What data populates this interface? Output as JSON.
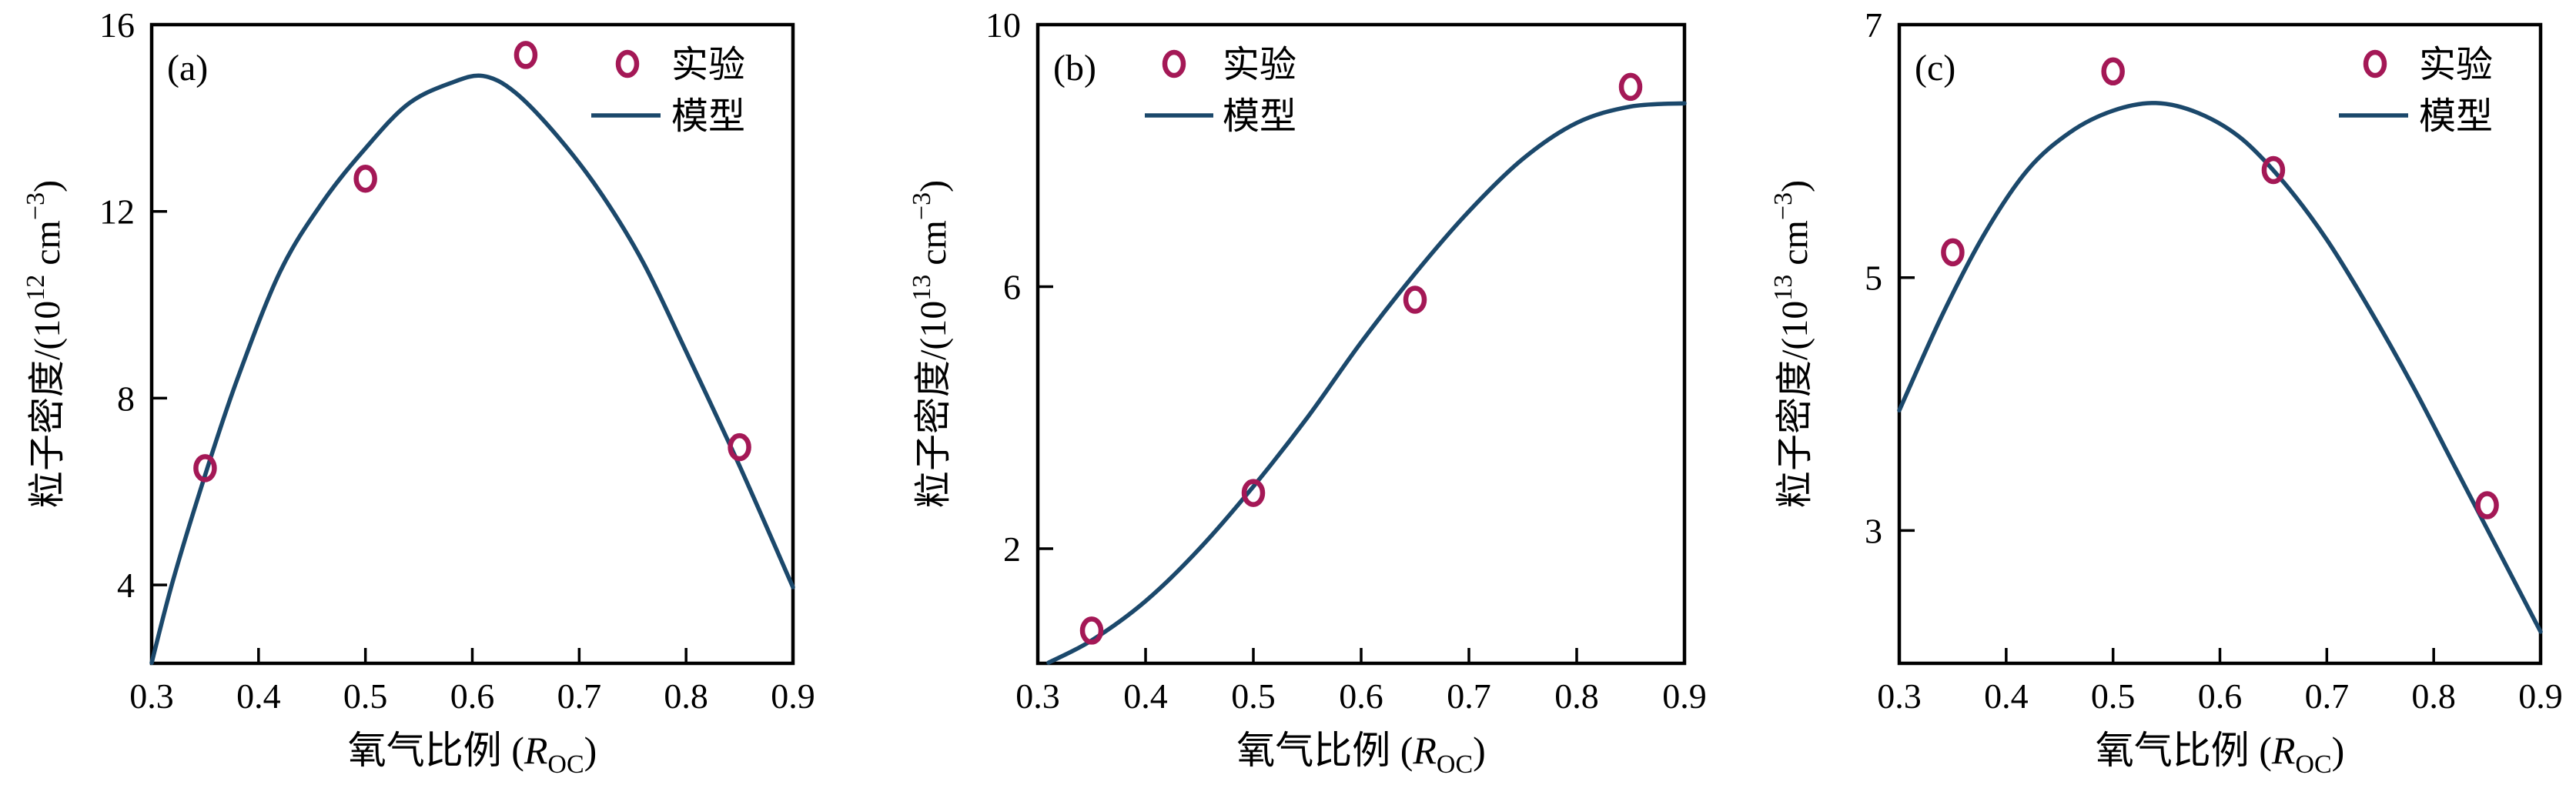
{
  "colors": {
    "background": "#ffffff",
    "axis": "#000000",
    "model_line": "#1b486b",
    "experiment_marker": "#a41856"
  },
  "legend": {
    "experiment_label": "实验",
    "model_label": "模型"
  },
  "xaxis": {
    "title_prefix": "氧气比例 (",
    "title_symbol": "R",
    "title_subscript": "OC",
    "title_suffix": ")",
    "tick_labels": [
      "0.3",
      "0.4",
      "0.5",
      "0.6",
      "0.7",
      "0.8",
      "0.9"
    ],
    "min": 0.3,
    "max": 0.9
  },
  "chart_data": [
    {
      "type": "scatter",
      "panel_label": "(a)",
      "xlabel": "氧气比例 (R_OC)",
      "ylabel_text": "粒子密度/(10^12 cm^-3)",
      "ylabel": {
        "prefix": "粒子密度/(10",
        "exponent": "12",
        "unit": " cm",
        "unit_exponent": "−3",
        "suffix": ")"
      },
      "xlim": [
        0.3,
        0.9
      ],
      "ylim": [
        2.32,
        16
      ],
      "yticks": [
        4,
        8,
        12,
        16
      ],
      "xticks": [
        0.3,
        0.4,
        0.5,
        0.6,
        0.7,
        0.8,
        0.9
      ],
      "legend_position": "top-right",
      "legend_entries": [
        "实验",
        "模型"
      ],
      "series": [
        {
          "name": "实验",
          "kind": "points",
          "x": [
            0.35,
            0.5,
            0.65,
            0.85
          ],
          "y": [
            6.5,
            12.7,
            15.35,
            6.95
          ]
        },
        {
          "name": "模型",
          "kind": "curve",
          "x": [
            0.3,
            0.32,
            0.35,
            0.38,
            0.42,
            0.46,
            0.5,
            0.54,
            0.58,
            0.61,
            0.64,
            0.68,
            0.72,
            0.76,
            0.8,
            0.85,
            0.9
          ],
          "y": [
            2.33,
            4.1,
            6.35,
            8.4,
            10.7,
            12.2,
            13.35,
            14.3,
            14.75,
            14.9,
            14.55,
            13.6,
            12.4,
            10.9,
            9.0,
            6.55,
            3.95
          ]
        }
      ]
    },
    {
      "type": "scatter",
      "panel_label": "(b)",
      "xlabel": "氧气比例 (R_OC)",
      "ylabel_text": "粒子密度/(10^13 cm^-3)",
      "ylabel": {
        "prefix": "粒子密度/(10",
        "exponent": "13",
        "unit": " cm",
        "unit_exponent": "−3",
        "suffix": ")"
      },
      "xlim": [
        0.3,
        0.9
      ],
      "ylim": [
        0.25,
        10
      ],
      "yticks": [
        2,
        6,
        10
      ],
      "xticks": [
        0.3,
        0.4,
        0.5,
        0.6,
        0.7,
        0.8,
        0.9
      ],
      "legend_position": "top-left",
      "legend_entries": [
        "实验",
        "模型"
      ],
      "series": [
        {
          "name": "实验",
          "kind": "points",
          "x": [
            0.35,
            0.5,
            0.65,
            0.85
          ],
          "y": [
            0.75,
            2.85,
            5.8,
            9.05
          ]
        },
        {
          "name": "模型",
          "kind": "curve",
          "x": [
            0.31,
            0.35,
            0.4,
            0.45,
            0.5,
            0.55,
            0.6,
            0.65,
            0.7,
            0.75,
            0.8,
            0.85,
            0.9
          ],
          "y": [
            0.26,
            0.6,
            1.2,
            2.0,
            2.95,
            4.0,
            5.15,
            6.2,
            7.15,
            7.95,
            8.5,
            8.75,
            8.8
          ]
        }
      ]
    },
    {
      "type": "scatter",
      "panel_label": "(c)",
      "xlabel": "氧气比例 (R_OC)",
      "ylabel_text": "粒子密度/(10^13 cm^-3)",
      "ylabel": {
        "prefix": "粒子密度/(10",
        "exponent": "13",
        "unit": " cm",
        "unit_exponent": "−3",
        "suffix": ")"
      },
      "xlim": [
        0.3,
        0.9
      ],
      "ylim": [
        1.95,
        7
      ],
      "yticks": [
        3,
        5,
        7
      ],
      "xticks": [
        0.3,
        0.4,
        0.5,
        0.6,
        0.7,
        0.8,
        0.9
      ],
      "legend_position": "top-right",
      "legend_entries": [
        "实验",
        "模型"
      ],
      "series": [
        {
          "name": "实验",
          "kind": "points",
          "x": [
            0.35,
            0.5,
            0.65,
            0.85
          ],
          "y": [
            5.2,
            6.63,
            5.85,
            3.2
          ]
        },
        {
          "name": "模型",
          "kind": "curve",
          "x": [
            0.3,
            0.34,
            0.38,
            0.42,
            0.46,
            0.5,
            0.54,
            0.58,
            0.62,
            0.66,
            0.7,
            0.74,
            0.78,
            0.82,
            0.86,
            0.9
          ],
          "y": [
            3.95,
            4.7,
            5.35,
            5.85,
            6.15,
            6.32,
            6.38,
            6.3,
            6.1,
            5.75,
            5.3,
            4.75,
            4.15,
            3.5,
            2.85,
            2.2
          ]
        }
      ]
    }
  ]
}
